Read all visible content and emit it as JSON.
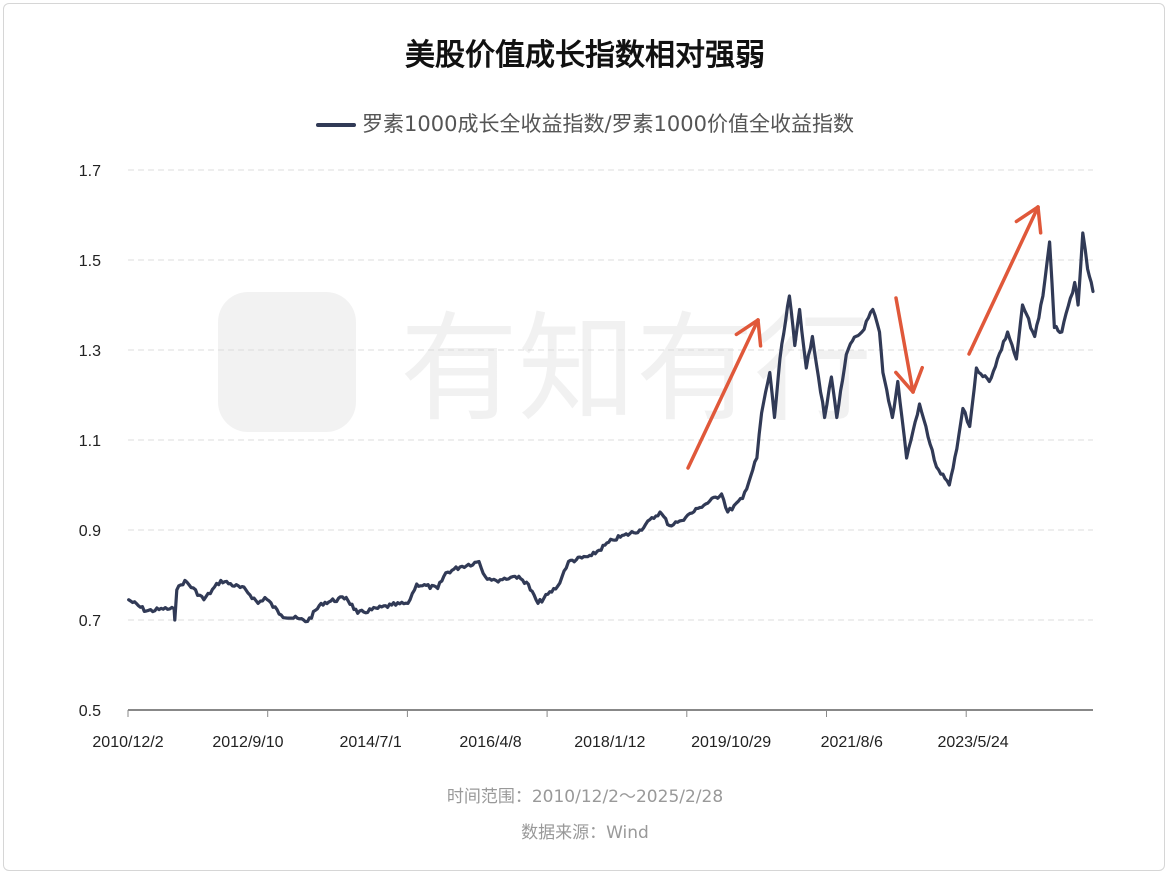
{
  "chart_data": {
    "type": "line",
    "title": "美股价值成长指数相对强弱",
    "xlabel": "",
    "ylabel": "",
    "ylim": [
      0.5,
      1.7
    ],
    "xlim": [
      2010.92,
      2025.16
    ],
    "y_ticks": [
      "0.5",
      "0.7",
      "0.9",
      "1.1",
      "1.3",
      "1.5",
      "1.7"
    ],
    "x_tick_labels": [
      {
        "label": "2010/12/2",
        "t": 2010.92
      },
      {
        "label": "2012/9/10",
        "t": 2012.69
      },
      {
        "label": "2014/7/1",
        "t": 2014.5
      },
      {
        "label": "2016/4/8",
        "t": 2016.27
      },
      {
        "label": "2018/1/12",
        "t": 2018.03
      },
      {
        "label": "2019/10/29",
        "t": 2019.82
      },
      {
        "label": "2021/8/6",
        "t": 2021.6
      },
      {
        "label": "2023/5/24",
        "t": 2023.39
      }
    ],
    "grid": "horizontal-dashed",
    "legend_position": "top-center",
    "series": [
      {
        "name": "罗素1000成长全收益指数/罗素1000价值全收益指数",
        "color": "#313a56",
        "points": [
          [
            2010.93,
            0.745
          ],
          [
            2011.19,
            0.72
          ],
          [
            2011.44,
            0.724
          ],
          [
            2011.6,
            0.725
          ],
          [
            2011.61,
            0.7
          ],
          [
            2011.64,
            0.767
          ],
          [
            2011.76,
            0.788
          ],
          [
            2012.04,
            0.745
          ],
          [
            2012.29,
            0.788
          ],
          [
            2012.66,
            0.767
          ],
          [
            2012.84,
            0.737
          ],
          [
            2012.94,
            0.75
          ],
          [
            2013.18,
            0.711
          ],
          [
            2013.57,
            0.697
          ],
          [
            2013.77,
            0.737
          ],
          [
            2014.14,
            0.75
          ],
          [
            2014.31,
            0.715
          ],
          [
            2014.81,
            0.733
          ],
          [
            2015.05,
            0.737
          ],
          [
            2015.18,
            0.78
          ],
          [
            2015.49,
            0.77
          ],
          [
            2015.61,
            0.805
          ],
          [
            2015.82,
            0.818
          ],
          [
            2016.1,
            0.83
          ],
          [
            2016.19,
            0.797
          ],
          [
            2016.35,
            0.788
          ],
          [
            2016.63,
            0.797
          ],
          [
            2016.8,
            0.784
          ],
          [
            2016.97,
            0.737
          ],
          [
            2017.26,
            0.775
          ],
          [
            2017.42,
            0.83
          ],
          [
            2017.76,
            0.843
          ],
          [
            2018.07,
            0.878
          ],
          [
            2018.47,
            0.9
          ],
          [
            2018.77,
            0.94
          ],
          [
            2018.91,
            0.91
          ],
          [
            2019.06,
            0.92
          ],
          [
            2019.36,
            0.95
          ],
          [
            2019.68,
            0.98
          ],
          [
            2019.77,
            0.94
          ],
          [
            2019.99,
            0.97
          ],
          [
            2020.2,
            1.06
          ],
          [
            2020.27,
            1.16
          ],
          [
            2020.39,
            1.25
          ],
          [
            2020.46,
            1.15
          ],
          [
            2020.54,
            1.28
          ],
          [
            2020.68,
            1.42
          ],
          [
            2020.76,
            1.31
          ],
          [
            2020.83,
            1.39
          ],
          [
            2020.93,
            1.26
          ],
          [
            2021.02,
            1.33
          ],
          [
            2021.2,
            1.15
          ],
          [
            2021.3,
            1.24
          ],
          [
            2021.38,
            1.15
          ],
          [
            2021.52,
            1.29
          ],
          [
            2021.61,
            1.32
          ],
          [
            2021.75,
            1.34
          ],
          [
            2021.91,
            1.39
          ],
          [
            2022.01,
            1.34
          ],
          [
            2022.06,
            1.25
          ],
          [
            2022.2,
            1.15
          ],
          [
            2022.28,
            1.23
          ],
          [
            2022.41,
            1.06
          ],
          [
            2022.6,
            1.18
          ],
          [
            2022.85,
            1.04
          ],
          [
            2023.04,
            1.0
          ],
          [
            2023.15,
            1.08
          ],
          [
            2023.24,
            1.17
          ],
          [
            2023.34,
            1.13
          ],
          [
            2023.44,
            1.26
          ],
          [
            2023.63,
            1.23
          ],
          [
            2023.9,
            1.34
          ],
          [
            2024.03,
            1.28
          ],
          [
            2024.12,
            1.4
          ],
          [
            2024.3,
            1.33
          ],
          [
            2024.42,
            1.42
          ],
          [
            2024.52,
            1.54
          ],
          [
            2024.59,
            1.35
          ],
          [
            2024.7,
            1.34
          ],
          [
            2024.89,
            1.45
          ],
          [
            2024.94,
            1.4
          ],
          [
            2025.01,
            1.56
          ],
          [
            2025.08,
            1.48
          ],
          [
            2025.16,
            1.43
          ]
        ]
      }
    ],
    "annotations": [
      "up-arrow-2019-2020",
      "down-arrow-2022",
      "up-arrow-2023-2024"
    ],
    "annotation_color": "#e0583a"
  },
  "legend": {
    "label": "罗素1000成长全收益指数/罗素1000价值全收益指数"
  },
  "footer": {
    "time_range": "时间范围：2010/12/2～2025/2/28",
    "source": "数据来源：Wind"
  },
  "watermark": "有知有行"
}
